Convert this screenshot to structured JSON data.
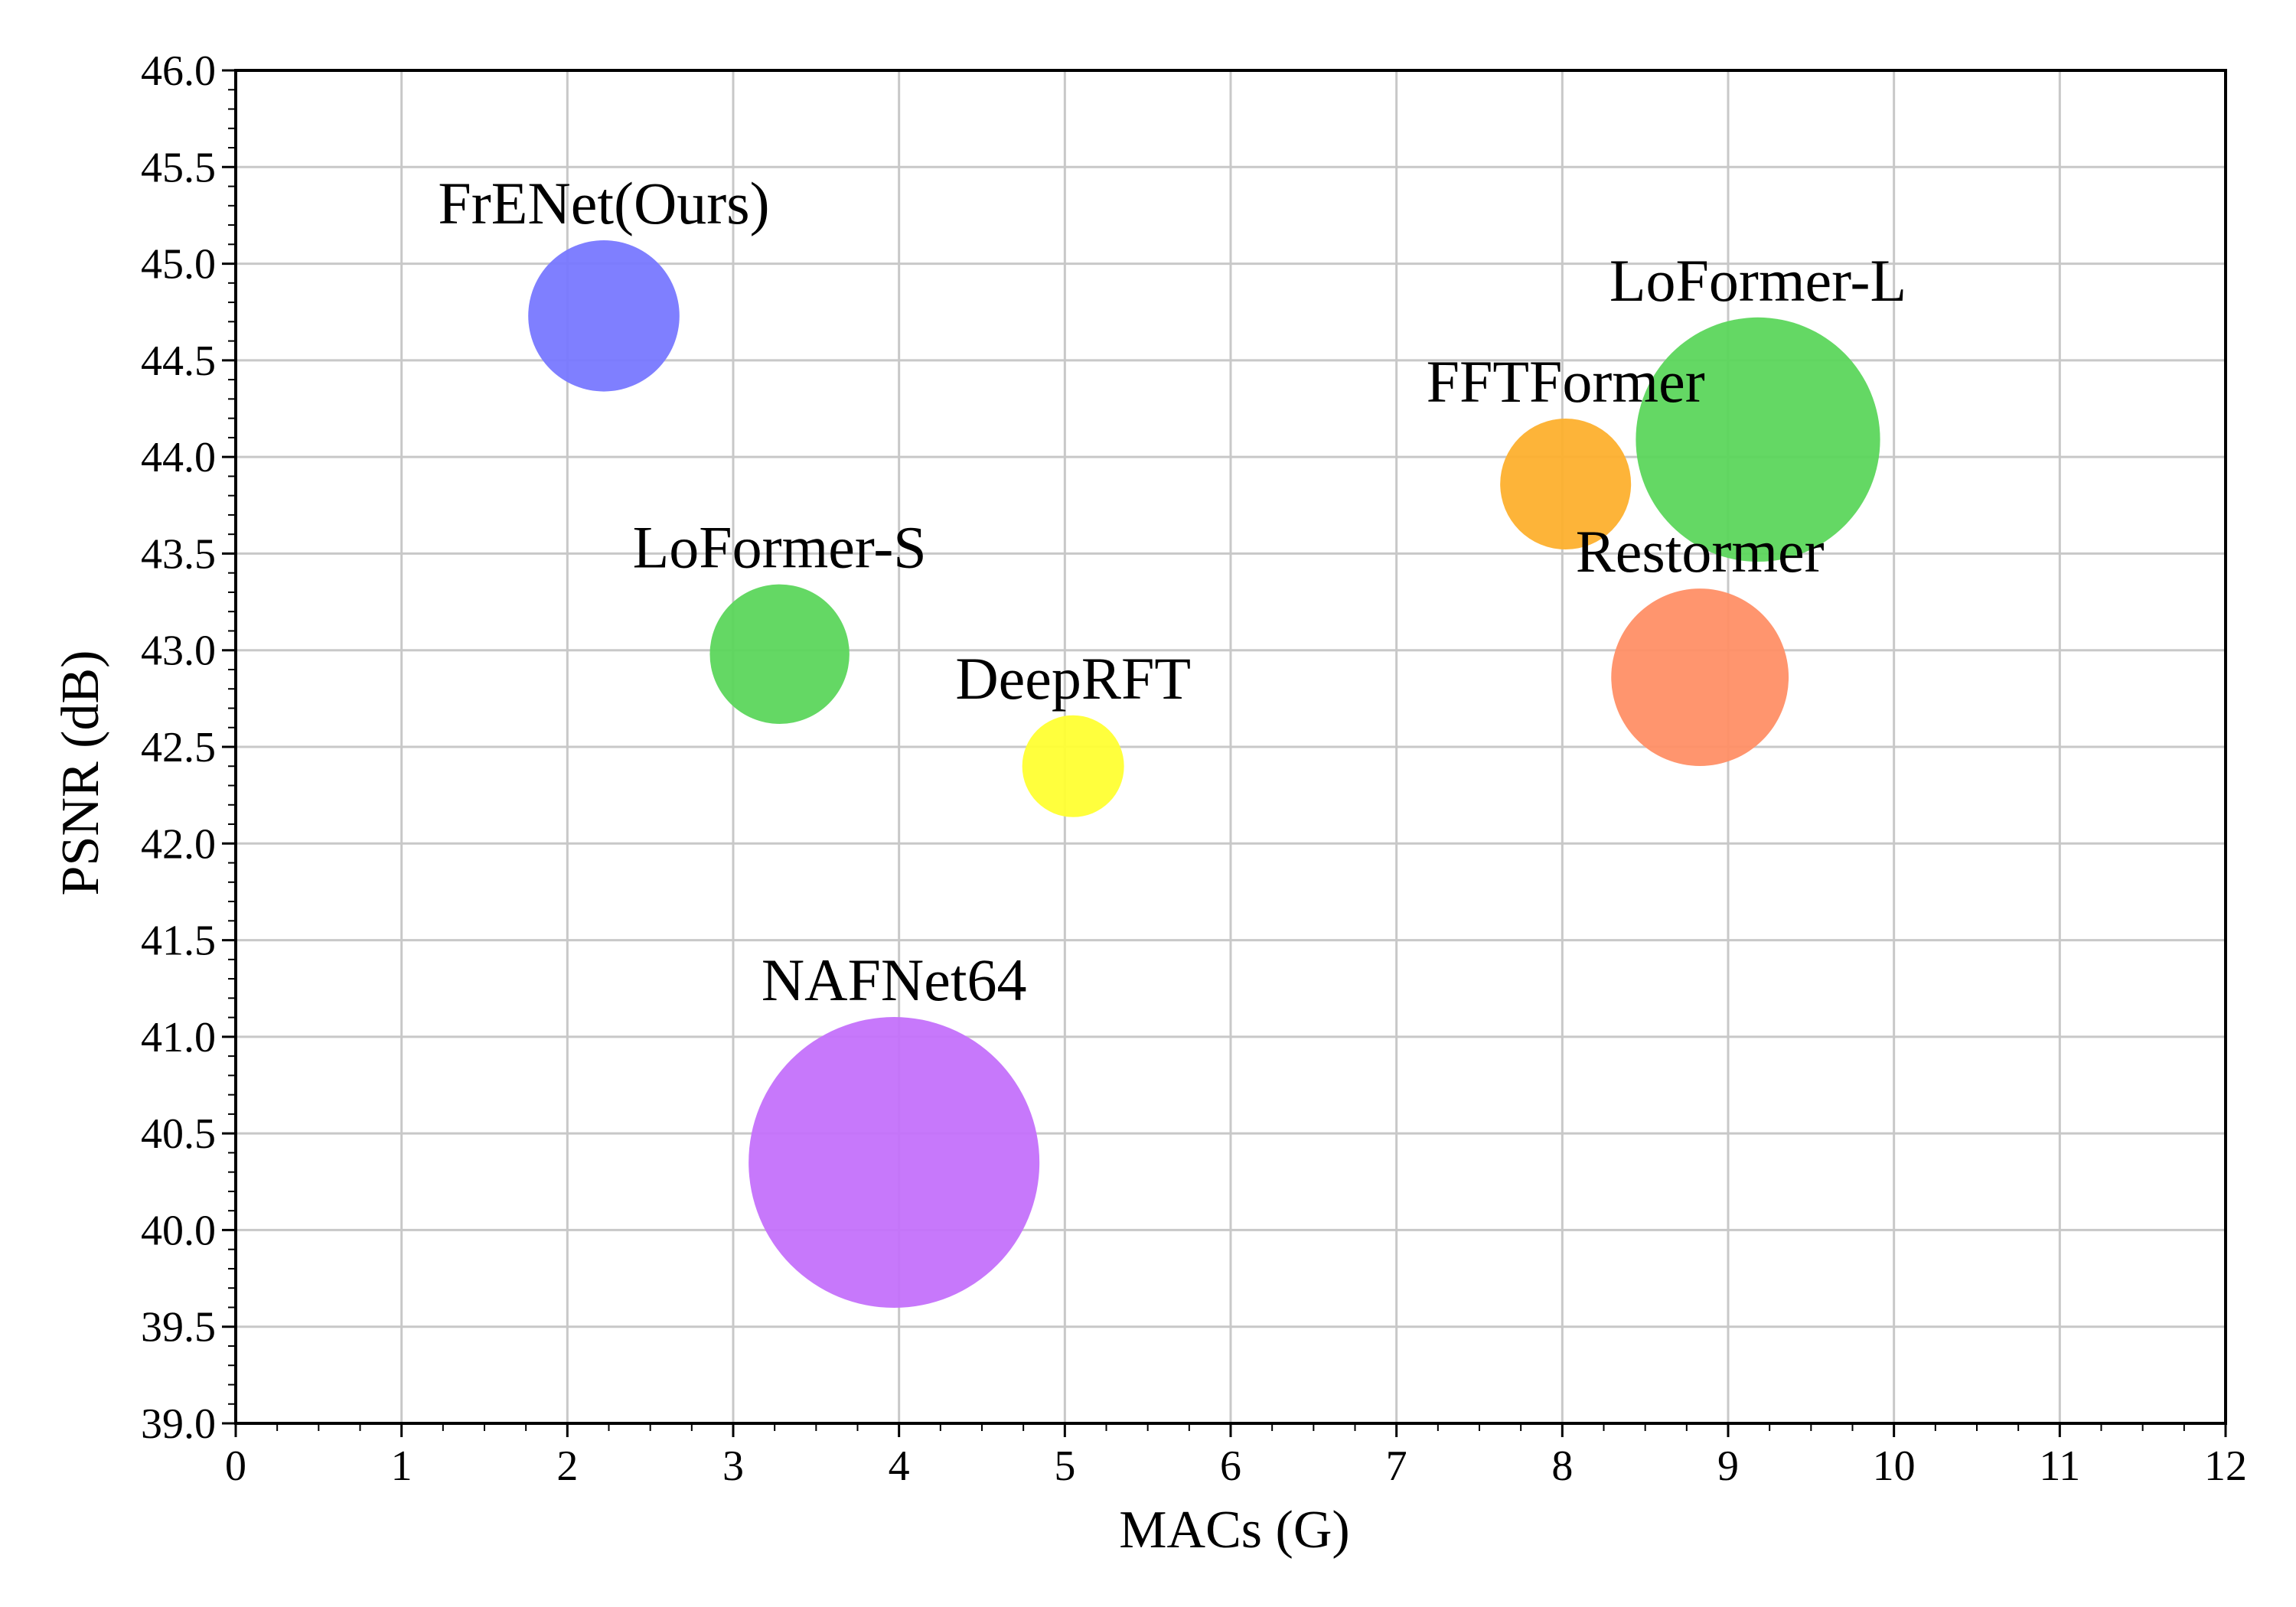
{
  "chart_data": {
    "type": "scatter",
    "title": "",
    "xlabel": "MACs (G)",
    "ylabel": "PSNR (dB)",
    "xlim": [
      0,
      12
    ],
    "ylim": [
      39.0,
      46.0
    ],
    "x_ticks": [
      0,
      1,
      2,
      3,
      4,
      5,
      6,
      7,
      8,
      9,
      10,
      11,
      12
    ],
    "y_ticks": [
      39.0,
      39.5,
      40.0,
      40.5,
      41.0,
      41.5,
      42.0,
      42.5,
      43.0,
      43.5,
      44.0,
      44.5,
      45.0,
      45.5,
      46.0
    ],
    "x_tick_labels": [
      "0",
      "1",
      "2",
      "3",
      "4",
      "5",
      "6",
      "7",
      "8",
      "9",
      "10",
      "11",
      "12"
    ],
    "y_tick_labels": [
      "39.0",
      "39.5",
      "40.0",
      "40.5",
      "41.0",
      "41.5",
      "42.0",
      "42.5",
      "43.0",
      "43.5",
      "44.0",
      "44.5",
      "45.0",
      "45.5",
      "46.0"
    ],
    "grid": true,
    "bubble_size_unit": "relative",
    "points": [
      {
        "name": "FrENet(Ours)",
        "x": 2.22,
        "y": 44.73,
        "size": 0.52,
        "color": "#7878ff"
      },
      {
        "name": "LoFormer-S",
        "x": 3.28,
        "y": 42.98,
        "size": 0.48,
        "color": "#5cd65c"
      },
      {
        "name": "DeepRFT",
        "x": 5.05,
        "y": 42.4,
        "size": 0.35,
        "color": "#ffff33"
      },
      {
        "name": "NAFNet64",
        "x": 3.97,
        "y": 40.35,
        "size": 1.0,
        "color": "#c471fb"
      },
      {
        "name": "FFTFormer",
        "x": 8.02,
        "y": 43.86,
        "size": 0.45,
        "color": "#fdb02e"
      },
      {
        "name": "LoFormer-L",
        "x": 9.18,
        "y": 44.09,
        "size": 0.84,
        "color": "#5cd65c"
      },
      {
        "name": "Restormer",
        "x": 8.83,
        "y": 42.86,
        "size": 0.61,
        "color": "#ff8f66"
      }
    ]
  }
}
